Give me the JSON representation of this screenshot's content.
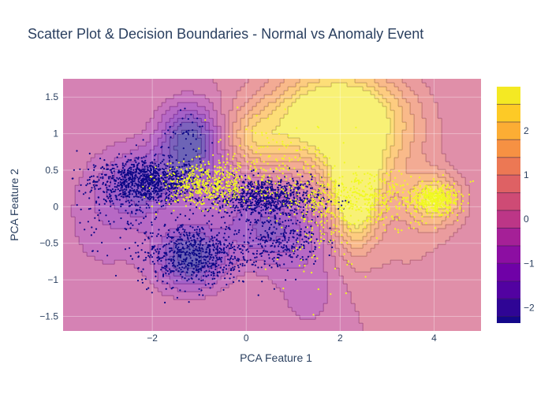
{
  "chart_data": {
    "type": "scatter",
    "title": "Scatter Plot & Decision Boundaries - Normal vs Anomaly Event",
    "xlabel": "PCA Feature 1",
    "ylabel": "PCA Feature 2",
    "xlim": [
      -3.9,
      5.0
    ],
    "ylim": [
      -1.7,
      1.75
    ],
    "x_ticks": [
      -2,
      0,
      2,
      4
    ],
    "y_ticks": [
      -1.5,
      -1,
      -0.5,
      0,
      0.5,
      1,
      1.5
    ],
    "grid": true,
    "background": "decision-boundary filled contour",
    "colorscale": "Plasma",
    "colorbar": {
      "range": [
        -2.35,
        3.0
      ],
      "ticks": [
        -2,
        -1,
        0,
        1,
        2
      ],
      "levels": [
        -2.2,
        -1.8,
        -1.4,
        -1.0,
        -0.6,
        -0.2,
        0.2,
        0.6,
        1.0,
        1.4,
        1.8,
        2.2,
        2.6
      ]
    },
    "series": [
      {
        "color": "#0d0887",
        "clusters": [
          {
            "center": [
              -2.1,
              0.35
            ],
            "spread": [
              0.55,
              0.15
            ],
            "count": 900
          },
          {
            "center": [
              0.4,
              0.12
            ],
            "spread": [
              0.6,
              0.14
            ],
            "count": 800
          },
          {
            "center": [
              -1.1,
              -0.65
            ],
            "spread": [
              0.6,
              0.22
            ],
            "count": 700
          },
          {
            "center": [
              0.8,
              -0.45
            ],
            "spread": [
              0.4,
              0.18
            ],
            "count": 250
          },
          {
            "center": [
              -2.6,
              0.1
            ],
            "spread": [
              0.5,
              0.3
            ],
            "count": 150
          },
          {
            "center": [
              -1.2,
              0.95
            ],
            "spread": [
              0.3,
              0.15
            ],
            "count": 40
          }
        ]
      },
      {
        "color": "#f0f921",
        "clusters": [
          {
            "center": [
              -0.8,
              0.3
            ],
            "spread": [
              0.5,
              0.15
            ],
            "count": 500
          },
          {
            "center": [
              4.05,
              0.1
            ],
            "spread": [
              0.22,
              0.09
            ],
            "count": 350
          },
          {
            "center": [
              2.6,
              0.1
            ],
            "spread": [
              0.9,
              0.18
            ],
            "count": 500
          },
          {
            "center": [
              1.6,
              -0.15
            ],
            "spread": [
              0.5,
              0.4
            ],
            "count": 150
          },
          {
            "center": [
              0.6,
              0.65
            ],
            "spread": [
              0.7,
              0.25
            ],
            "count": 150
          }
        ]
      }
    ]
  }
}
